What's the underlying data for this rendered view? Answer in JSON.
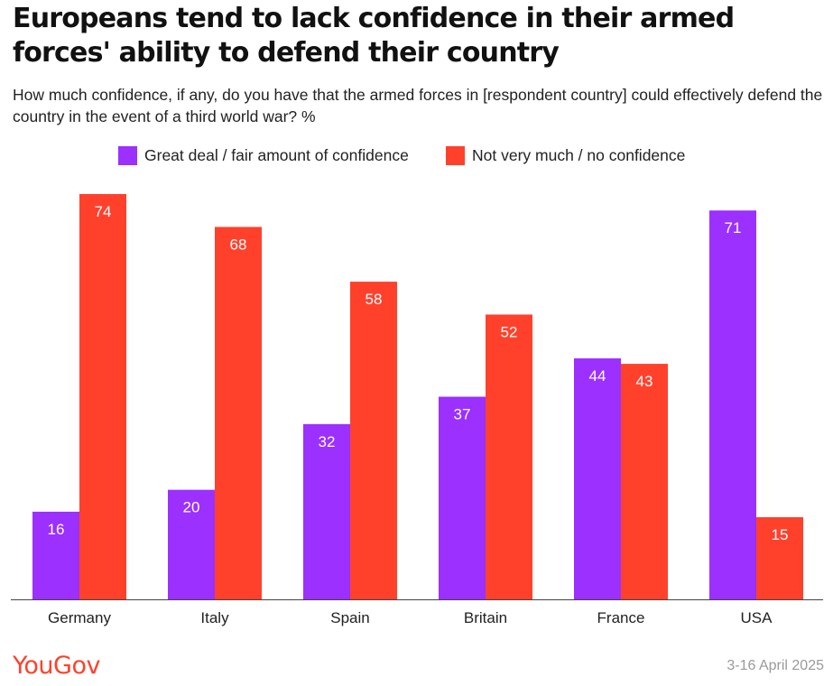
{
  "header": {
    "title": "Europeans tend to lack confidence in their armed forces' ability to defend their country",
    "subtitle": "How much confidence, if any, do you have that the armed forces in [respondent country] could effectively defend the country in the event of a third world war? %"
  },
  "footer": {
    "brand": "YouGov",
    "date": "3-16 April 2025"
  },
  "chart_data": {
    "type": "bar",
    "categories": [
      "Germany",
      "Italy",
      "Spain",
      "Britain",
      "France",
      "USA"
    ],
    "series": [
      {
        "name": "Great deal / fair amount of confidence",
        "values": [
          16,
          20,
          32,
          37,
          44,
          71
        ],
        "color": "#9b30ff"
      },
      {
        "name": "Not very much / no confidence",
        "values": [
          74,
          68,
          58,
          52,
          43,
          15
        ],
        "color": "#ff412c"
      }
    ],
    "ylim": [
      0,
      74
    ],
    "grid": false,
    "legend": "top-center",
    "data_labels": true
  }
}
